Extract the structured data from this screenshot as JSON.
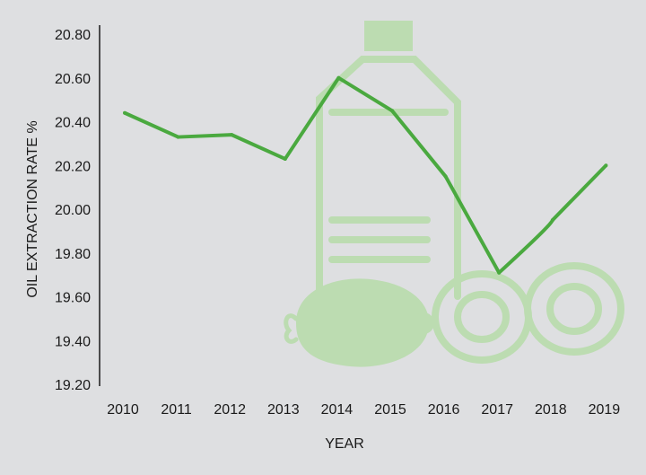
{
  "chart_data": {
    "type": "line",
    "title": "",
    "xlabel": "YEAR",
    "ylabel": "OIL EXTRACTION RATE %",
    "categories": [
      "2010",
      "2011",
      "2012",
      "2013",
      "2014",
      "2015",
      "2016",
      "2017",
      "2018",
      "2019"
    ],
    "series": [
      {
        "name": "Oil extraction rate",
        "values": [
          20.44,
          20.33,
          20.34,
          20.23,
          20.6,
          20.45,
          20.15,
          19.71,
          19.95,
          20.2
        ]
      }
    ],
    "ylim": [
      19.2,
      20.8
    ],
    "yticks": [
      "19.20",
      "19.40",
      "19.60",
      "19.80",
      "20.00",
      "20.20",
      "20.40",
      "20.60",
      "20.80"
    ],
    "grid": false,
    "colors": {
      "line": "#4aa93f",
      "decoration": "#bcdcb1",
      "background": "#dedfe1",
      "axis": "#1a1a1a"
    }
  }
}
